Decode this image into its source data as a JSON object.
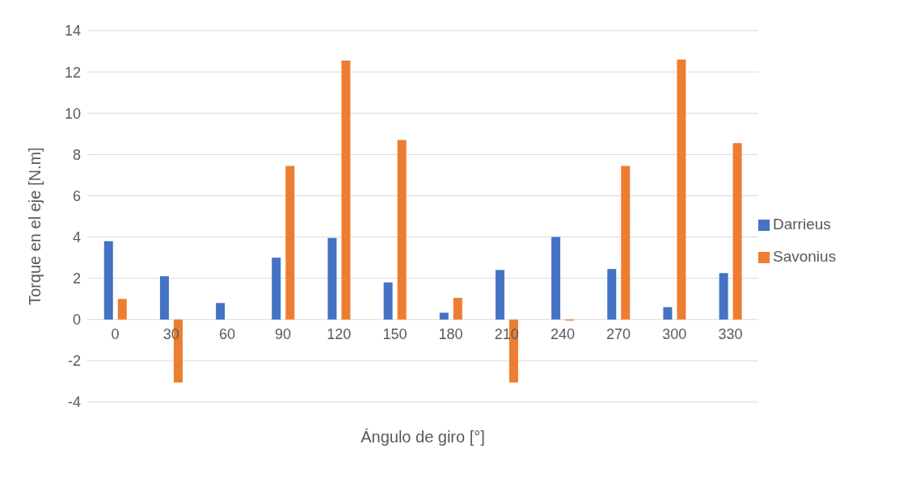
{
  "chart_data": {
    "type": "bar",
    "xlabel": "Ángulo de giro [°]",
    "ylabel": "Torque  en el eje [N.m]",
    "categories": [
      "0",
      "30",
      "60",
      "90",
      "120",
      "150",
      "180",
      "210",
      "240",
      "270",
      "300",
      "330"
    ],
    "series": [
      {
        "name": "Darrieus",
        "color": "#4472c4",
        "values": [
          3.8,
          2.1,
          0.8,
          3.0,
          3.95,
          1.8,
          0.33,
          2.4,
          4.0,
          2.45,
          0.6,
          2.25
        ]
      },
      {
        "name": "Savonius",
        "color": "#ed7d31",
        "values": [
          1.0,
          -3.05,
          0,
          7.45,
          12.55,
          8.7,
          1.05,
          -3.05,
          -0.05,
          7.45,
          12.6,
          8.55
        ]
      }
    ],
    "ylim": [
      -4,
      14
    ],
    "yticks": [
      -4,
      -2,
      0,
      2,
      4,
      6,
      8,
      10,
      12,
      14
    ],
    "grid": "y",
    "legend": "right"
  }
}
